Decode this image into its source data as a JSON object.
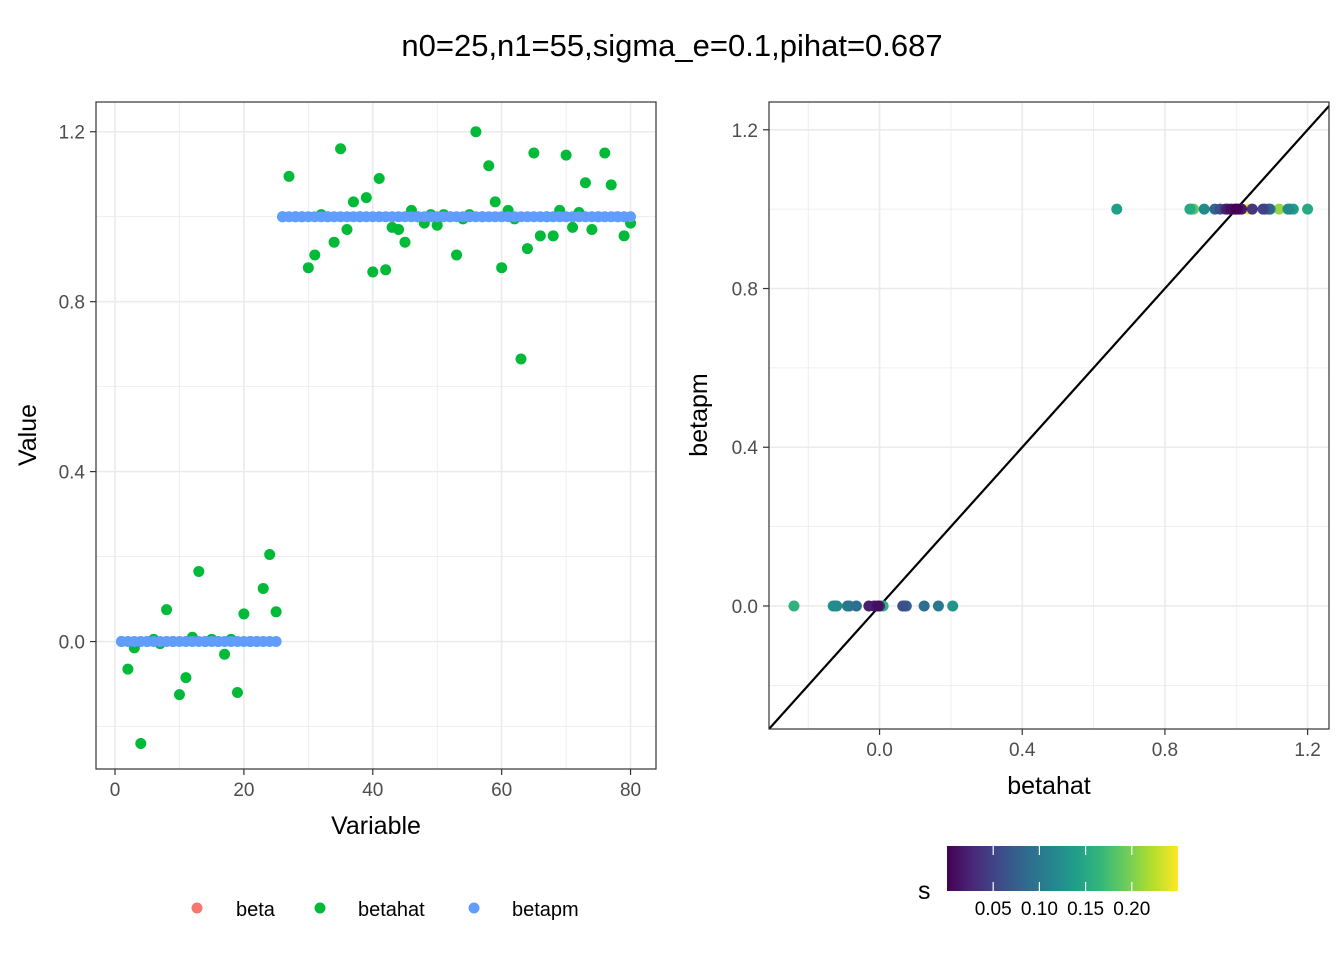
{
  "title": "n0=25,n1=55,sigma_e=0.1,pihat=0.687",
  "chart_data": [
    {
      "type": "scatter",
      "id": "left",
      "xlabel": "Variable",
      "ylabel": "Value",
      "xlim": [
        -2.95,
        83.95
      ],
      "ylim": [
        -0.3,
        1.27
      ],
      "x_ticks": [
        0,
        20,
        40,
        60,
        80
      ],
      "x_tick_labels": [
        "0",
        "20",
        "40",
        "60",
        "80"
      ],
      "y_ticks": [
        0.0,
        0.4,
        0.8,
        1.2
      ],
      "y_tick_labels": [
        "0.0",
        "0.4",
        "0.8",
        "1.2"
      ],
      "grid": true,
      "legend": {
        "position": "bottom",
        "entries": [
          {
            "label": "beta",
            "color": "#F8766D"
          },
          {
            "label": "betahat",
            "color": "#00BA38"
          },
          {
            "label": "betapm",
            "color": "#619CFF"
          }
        ]
      },
      "series": [
        {
          "name": "betahat",
          "color": "#00BA38",
          "points": [
            [
              1,
              0.0
            ],
            [
              2,
              -0.065
            ],
            [
              3,
              -0.015
            ],
            [
              4,
              -0.24
            ],
            [
              5,
              0.0
            ],
            [
              6,
              0.005
            ],
            [
              7,
              -0.005
            ],
            [
              8,
              0.075
            ],
            [
              9,
              0.0
            ],
            [
              10,
              -0.125
            ],
            [
              11,
              -0.085
            ],
            [
              12,
              0.01
            ],
            [
              13,
              0.165
            ],
            [
              14,
              0.0
            ],
            [
              15,
              0.005
            ],
            [
              16,
              0.0
            ],
            [
              17,
              -0.03
            ],
            [
              18,
              0.005
            ],
            [
              19,
              -0.12
            ],
            [
              20,
              0.065
            ],
            [
              21,
              0.0
            ],
            [
              22,
              0.0
            ],
            [
              23,
              0.125
            ],
            [
              24,
              0.205
            ],
            [
              25,
              0.07
            ],
            [
              26,
              1.0
            ],
            [
              27,
              1.095
            ],
            [
              28,
              1.0
            ],
            [
              29,
              1.0
            ],
            [
              30,
              0.88
            ],
            [
              31,
              0.91
            ],
            [
              32,
              1.005
            ],
            [
              33,
              1.0
            ],
            [
              34,
              0.94
            ],
            [
              35,
              1.16
            ],
            [
              36,
              0.97
            ],
            [
              37,
              1.035
            ],
            [
              38,
              1.0
            ],
            [
              39,
              1.045
            ],
            [
              40,
              0.87
            ],
            [
              41,
              1.09
            ],
            [
              42,
              0.875
            ],
            [
              43,
              0.975
            ],
            [
              44,
              0.97
            ],
            [
              45,
              0.94
            ],
            [
              46,
              1.015
            ],
            [
              47,
              1.0
            ],
            [
              48,
              0.985
            ],
            [
              49,
              1.005
            ],
            [
              50,
              0.98
            ],
            [
              51,
              1.005
            ],
            [
              52,
              1.0
            ],
            [
              53,
              0.91
            ],
            [
              54,
              0.995
            ],
            [
              55,
              1.005
            ],
            [
              56,
              1.2
            ],
            [
              57,
              1.0
            ],
            [
              58,
              1.12
            ],
            [
              59,
              1.035
            ],
            [
              60,
              0.88
            ],
            [
              61,
              1.015
            ],
            [
              62,
              0.995
            ],
            [
              63,
              0.665
            ],
            [
              64,
              0.925
            ],
            [
              65,
              1.15
            ],
            [
              66,
              0.955
            ],
            [
              67,
              1.0
            ],
            [
              68,
              0.955
            ],
            [
              69,
              1.015
            ],
            [
              70,
              1.145
            ],
            [
              71,
              0.975
            ],
            [
              72,
              1.01
            ],
            [
              73,
              1.08
            ],
            [
              74,
              0.97
            ],
            [
              75,
              1.0
            ],
            [
              76,
              1.15
            ],
            [
              77,
              1.075
            ],
            [
              78,
              1.0
            ],
            [
              79,
              0.955
            ],
            [
              80,
              0.985
            ]
          ]
        },
        {
          "name": "betapm",
          "color": "#619CFF",
          "n0": 25,
          "n1": 55,
          "zero_value": 0.0,
          "one_value": 1.0
        }
      ]
    },
    {
      "type": "scatter",
      "id": "right",
      "xlabel": "betahat",
      "ylabel": "betapm",
      "xlim": [
        -0.31,
        1.26
      ],
      "ylim": [
        -0.31,
        1.27
      ],
      "x_ticks": [
        0.0,
        0.4,
        0.8,
        1.2
      ],
      "x_tick_labels": [
        "0.0",
        "0.4",
        "0.8",
        "1.2"
      ],
      "y_ticks": [
        0.0,
        0.4,
        0.8,
        1.2
      ],
      "y_tick_labels": [
        "0.0",
        "0.4",
        "0.8",
        "1.2"
      ],
      "grid": true,
      "reference_line": {
        "slope": 1,
        "intercept": 0,
        "color": "#000000"
      },
      "colorbar": {
        "title": "s",
        "range": [
          0.0,
          0.25
        ],
        "ticks": [
          0.05,
          0.1,
          0.15,
          0.2
        ],
        "tick_labels": [
          "0.05",
          "0.10",
          "0.15",
          "0.20"
        ],
        "palette": [
          "#440154",
          "#482878",
          "#3E4A89",
          "#31688E",
          "#26828E",
          "#1F9E89",
          "#35B779",
          "#6DCD59",
          "#B4DE2C",
          "#FDE725"
        ]
      },
      "points": [
        [
          -0.24,
          0.0,
          0.16
        ],
        [
          -0.13,
          0.0,
          0.13
        ],
        [
          -0.125,
          0.0,
          0.12
        ],
        [
          -0.12,
          0.0,
          0.12
        ],
        [
          -0.09,
          0.0,
          0.1
        ],
        [
          -0.085,
          0.0,
          0.1
        ],
        [
          -0.065,
          0.0,
          0.09
        ],
        [
          -0.03,
          0.0,
          0.02
        ],
        [
          -0.015,
          0.0,
          0.02
        ],
        [
          -0.005,
          0.0,
          0.01
        ],
        [
          0.0,
          0.0,
          0.03
        ],
        [
          0.005,
          0.0,
          0.18
        ],
        [
          0.01,
          0.0,
          0.16
        ],
        [
          0.065,
          0.0,
          0.06
        ],
        [
          0.07,
          0.0,
          0.07
        ],
        [
          0.075,
          0.0,
          0.08
        ],
        [
          0.125,
          0.0,
          0.09
        ],
        [
          0.165,
          0.0,
          0.1
        ],
        [
          0.205,
          0.0,
          0.13
        ],
        [
          0.665,
          1.0,
          0.14
        ],
        [
          0.87,
          1.0,
          0.15
        ],
        [
          0.875,
          1.0,
          0.18
        ],
        [
          0.88,
          1.0,
          0.19
        ],
        [
          0.91,
          1.0,
          0.12
        ],
        [
          0.94,
          1.0,
          0.08
        ],
        [
          0.955,
          1.0,
          0.06
        ],
        [
          0.97,
          1.0,
          0.03
        ],
        [
          0.975,
          1.0,
          0.02
        ],
        [
          0.985,
          1.0,
          0.01
        ],
        [
          0.995,
          1.0,
          0.01
        ],
        [
          1.0,
          1.0,
          0.0
        ],
        [
          1.005,
          1.0,
          0.01
        ],
        [
          1.01,
          1.0,
          0.02
        ],
        [
          1.015,
          1.0,
          0.02
        ],
        [
          1.035,
          1.0,
          0.25
        ],
        [
          1.045,
          1.0,
          0.04
        ],
        [
          1.075,
          1.0,
          0.05
        ],
        [
          1.08,
          1.0,
          0.07
        ],
        [
          1.09,
          1.0,
          0.08
        ],
        [
          1.095,
          1.0,
          0.1
        ],
        [
          1.12,
          1.0,
          0.21
        ],
        [
          1.145,
          1.0,
          0.12
        ],
        [
          1.15,
          1.0,
          0.13
        ],
        [
          1.16,
          1.0,
          0.14
        ],
        [
          1.2,
          1.0,
          0.15
        ]
      ]
    }
  ]
}
